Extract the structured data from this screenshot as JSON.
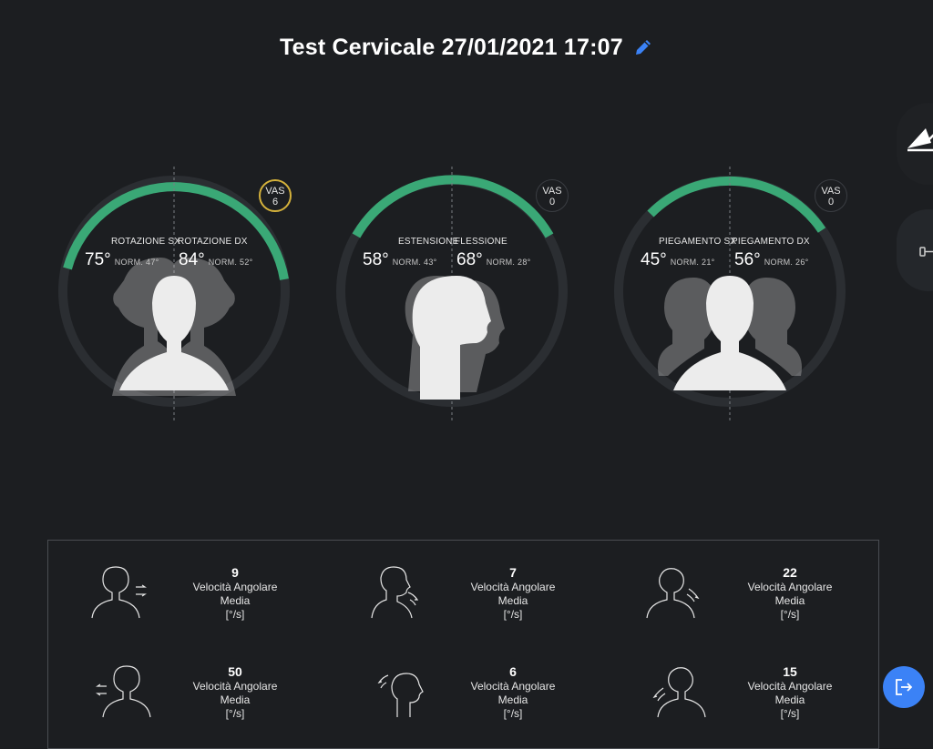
{
  "header": {
    "title": "Test Cervicale 27/01/2021 17:07",
    "edit_icon": "pencil-icon",
    "edit_color": "#3b82f6"
  },
  "gauges": [
    {
      "label_left": "ROTAZIONE SX",
      "label_right": "ROTAZIONE DX",
      "value_left": "75°",
      "norm_left": "NORM. 47°",
      "value_right": "84°",
      "norm_right": "NORM. 52°",
      "vas_label": "VAS",
      "vas_value": "6",
      "vas_color": "#d4b13b"
    },
    {
      "label_left": "ESTENSIONE",
      "label_right": "FLESSIONE",
      "value_left": "58°",
      "norm_left": "NORM. 43°",
      "value_right": "68°",
      "norm_right": "NORM. 28°",
      "vas_label": "VAS",
      "vas_value": "0",
      "vas_color": "#3a3d42"
    },
    {
      "label_left": "PIEGAMENTO SX",
      "label_right": "PIEGAMENTO DX",
      "value_left": "45°",
      "norm_left": "NORM. 21°",
      "value_right": "56°",
      "norm_right": "NORM. 26°",
      "vas_label": "VAS",
      "vas_value": "0",
      "vas_color": "#3a3d42"
    }
  ],
  "velocity": {
    "label_line1": "Velocità Angolare",
    "label_line2": "Media",
    "unit": "[°/s]",
    "values": [
      "9",
      "7",
      "22",
      "50",
      "6",
      "15"
    ]
  },
  "colors": {
    "accent_green": "#3aa876",
    "track": "#2b2e32",
    "background": "#1c1e21",
    "action_blue": "#3b82f6"
  },
  "icons": {
    "side_top": "triangle-arrow-icon",
    "side_mid": "dumbbell-icon",
    "exit": "exit-icon"
  }
}
